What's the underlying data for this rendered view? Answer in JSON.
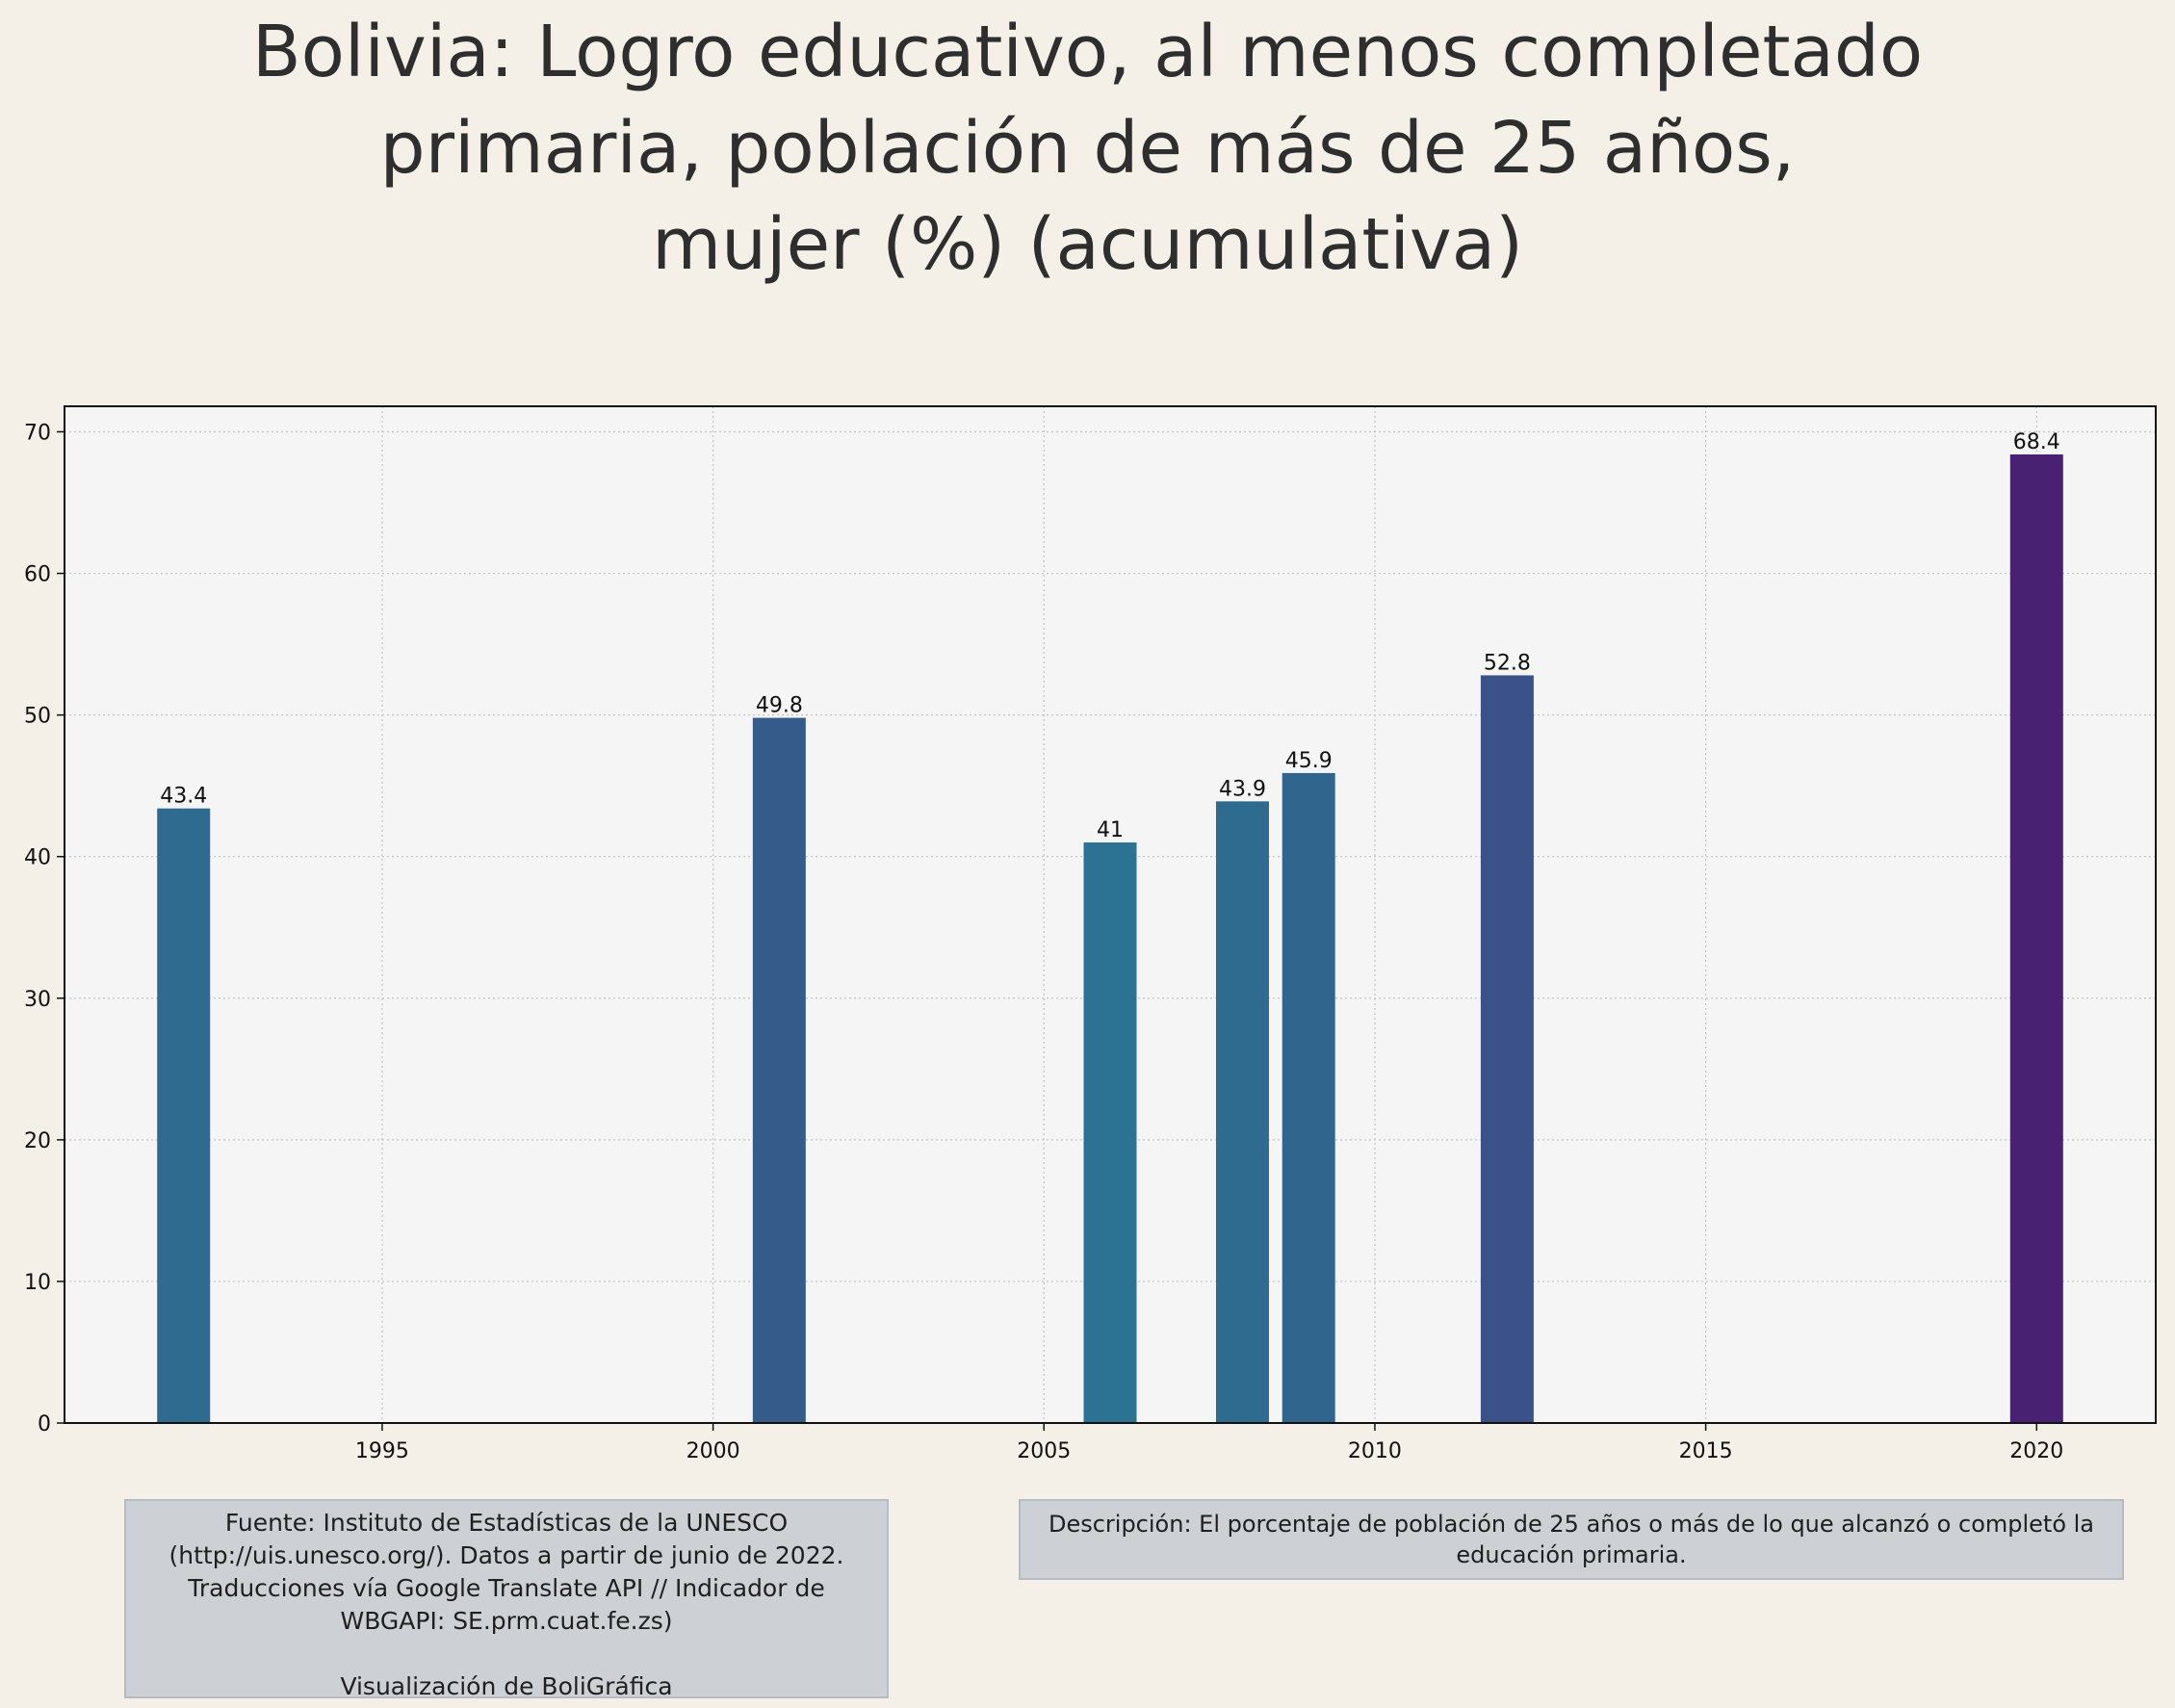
{
  "title_lines": [
    "Bolivia:  Logro educativo, al menos completado",
    "primaria, población de más de 25 años,",
    "mujer (%) (acumulativa)"
  ],
  "chart_data": {
    "type": "bar",
    "title": "Bolivia:  Logro educativo, al menos completado primaria, población de más de 25 años, mujer (%) (acumulativa)",
    "x": [
      1992,
      2001,
      2006,
      2008,
      2009,
      2012,
      2020
    ],
    "values": [
      43.4,
      49.8,
      41,
      43.9,
      45.9,
      52.8,
      68.4
    ],
    "value_labels": [
      "43.4",
      "49.8",
      "41",
      "43.9",
      "45.9",
      "52.8",
      "68.4"
    ],
    "bar_colors": [
      "#2e6b8e",
      "#355b8b",
      "#2c7292",
      "#2e6b8e",
      "#30668d",
      "#3a5289",
      "#482173"
    ],
    "xlim": [
      1990.2,
      2021.8
    ],
    "ylim": [
      0,
      71.8
    ],
    "x_ticks": [
      1995,
      2000,
      2005,
      2010,
      2015,
      2020
    ],
    "y_ticks": [
      0,
      10,
      20,
      30,
      40,
      50,
      60,
      70
    ],
    "grid": true,
    "xlabel": "",
    "ylabel": ""
  },
  "source_box": {
    "lines": [
      "Fuente: Instituto de Estadísticas de la UNESCO",
      "(http://uis.unesco.org/). Datos a partir de junio de 2022.",
      "Traducciones vía Google Translate API // Indicador de",
      "WBGAPI: SE.prm.cuat.fe.zs)"
    ],
    "credit": "Visualización de BoliGráfica"
  },
  "description_box": {
    "lines": [
      "Descripción: El porcentaje de población de 25 años o más de lo que alcanzó o completó la",
      "educación primaria."
    ]
  },
  "colors": {
    "page_background": "#f4f0e8",
    "plot_background": "#f5f5f5",
    "box_background": "#cdd0d4"
  }
}
